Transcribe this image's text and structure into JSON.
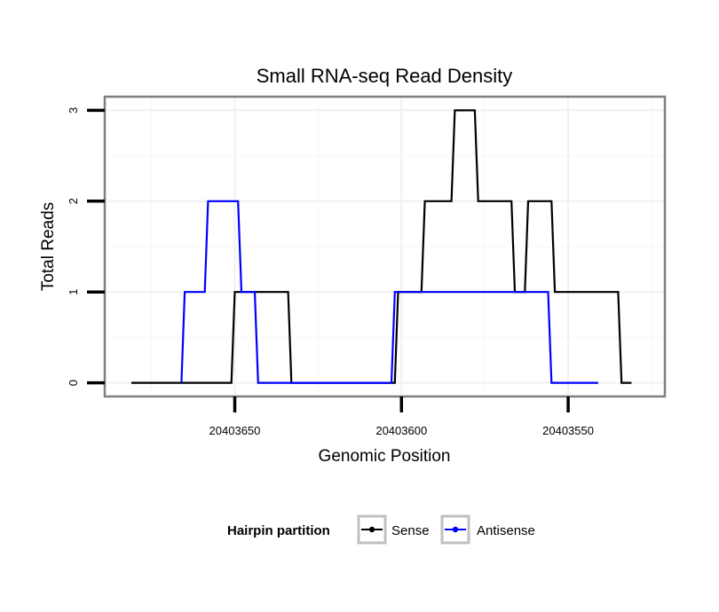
{
  "chart_data": {
    "type": "line",
    "title": "Small RNA-seq Read Density",
    "xlabel": "Genomic Position",
    "ylabel": "Total Reads",
    "x_reversed": true,
    "xlim": [
      20403689,
      20403521
    ],
    "ylim": [
      -0.15,
      3.15
    ],
    "x_ticks": [
      20403650,
      20403600,
      20403550
    ],
    "x_tick_labels": [
      "20403650",
      "20403600",
      "20403550"
    ],
    "y_ticks": [
      0,
      1,
      2,
      3
    ],
    "y_tick_labels": [
      "0",
      "1",
      "2",
      "3"
    ],
    "grid": true,
    "legend": {
      "title": "Hairpin partition",
      "position": "bottom",
      "entries": [
        "Sense",
        "Antisense"
      ]
    },
    "series": [
      {
        "name": "Sense",
        "color": "#000000",
        "x": [
          20403681,
          20403651,
          20403650,
          20403634,
          20403633,
          20403615,
          20403614,
          20403602,
          20403601,
          20403594,
          20403593,
          20403585,
          20403584,
          20403583,
          20403582,
          20403578,
          20403577,
          20403575,
          20403574,
          20403567,
          20403566,
          20403563,
          20403562,
          20403555,
          20403554,
          20403547,
          20403546,
          20403535,
          20403534,
          20403531
        ],
        "values": [
          0,
          0,
          1,
          1,
          0,
          0,
          0,
          0,
          1,
          1,
          2,
          2,
          3,
          3,
          3,
          3,
          2,
          2,
          2,
          2,
          1,
          1,
          2,
          2,
          1,
          1,
          1,
          1,
          0,
          0
        ]
      },
      {
        "name": "Antisense",
        "color": "#0000ff",
        "x": [
          20403666,
          20403665,
          20403659,
          20403658,
          20403649,
          20403648,
          20403644,
          20403643,
          20403603,
          20403602,
          20403556,
          20403555,
          20403541
        ],
        "values": [
          0,
          1,
          1,
          2,
          2,
          1,
          1,
          0,
          0,
          1,
          1,
          0,
          0
        ]
      }
    ]
  }
}
